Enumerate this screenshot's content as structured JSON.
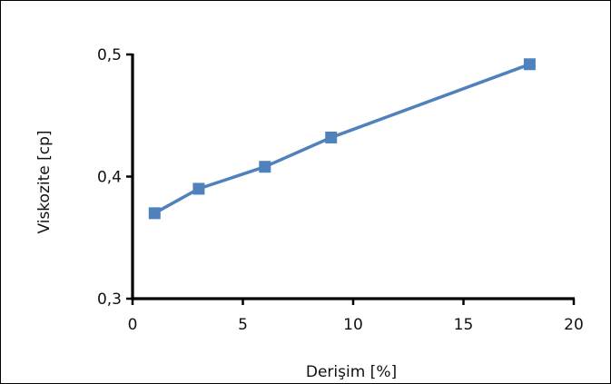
{
  "chart_data": {
    "type": "line",
    "title": "",
    "xlabel": "Derişim [%]",
    "ylabel": "Viskozite [cp]",
    "xlim": [
      0,
      20
    ],
    "ylim": [
      0.3,
      0.5
    ],
    "x_ticks": [
      0,
      5,
      10,
      15,
      20
    ],
    "x_tick_labels": [
      "0",
      "5",
      "10",
      "15",
      "20"
    ],
    "y_ticks": [
      0.3,
      0.4,
      0.5
    ],
    "y_tick_labels": [
      "0,3",
      "0,4",
      "0,5"
    ],
    "grid": false,
    "legend": "none",
    "series": [
      {
        "x": [
          1,
          3,
          6,
          9,
          18
        ],
        "y": [
          0.37,
          0.39,
          0.408,
          0.432,
          0.492
        ],
        "color": "#4F81BD",
        "marker": "square"
      }
    ]
  }
}
